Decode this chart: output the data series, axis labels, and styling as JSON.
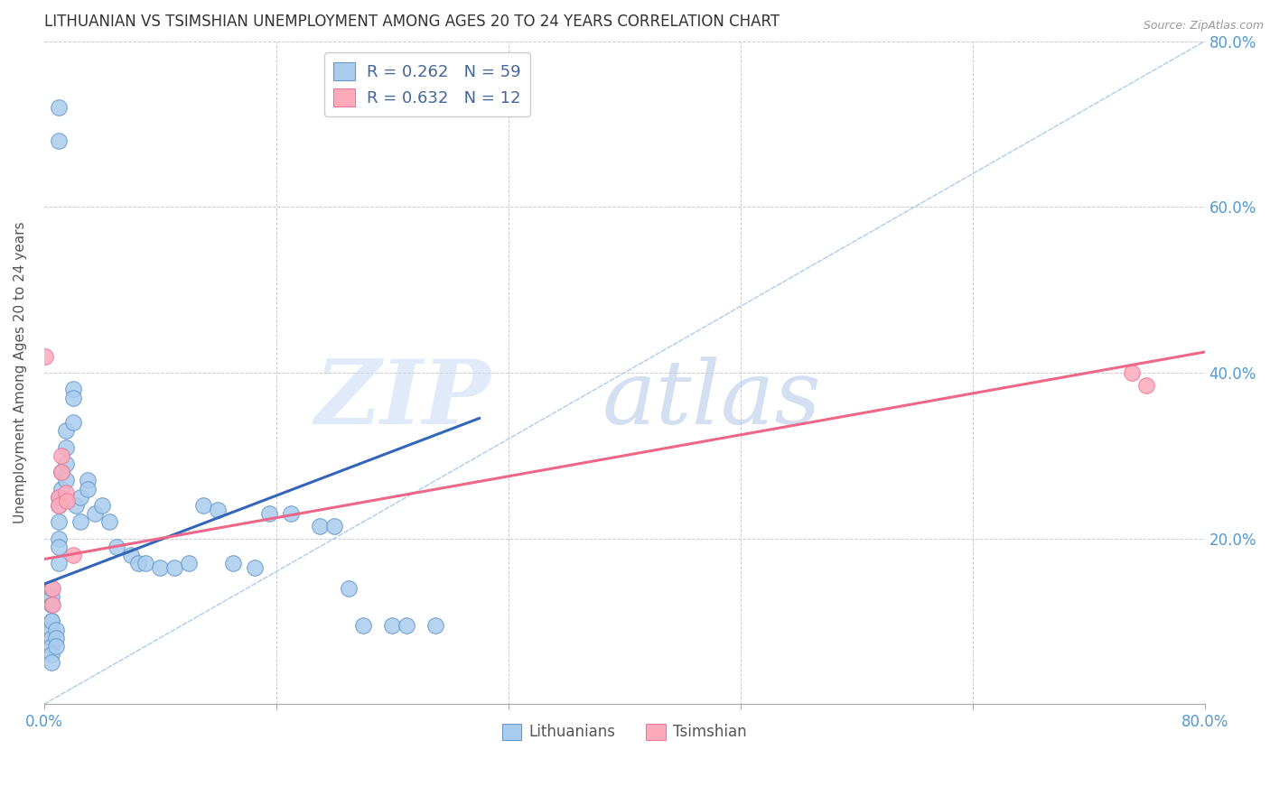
{
  "title": "LITHUANIAN VS TSIMSHIAN UNEMPLOYMENT AMONG AGES 20 TO 24 YEARS CORRELATION CHART",
  "source": "Source: ZipAtlas.com",
  "ylabel": "Unemployment Among Ages 20 to 24 years",
  "xlim": [
    0.0,
    0.8
  ],
  "ylim": [
    0.0,
    0.8
  ],
  "right_yticks": [
    0.2,
    0.4,
    0.6,
    0.8
  ],
  "right_yticklabels": [
    "20.0%",
    "40.0%",
    "60.0%",
    "80.0%"
  ],
  "legend_line1": "R = 0.262   N = 59",
  "legend_line2": "R = 0.632   N = 12",
  "blue_fill": "#aaccee",
  "blue_edge": "#6699cc",
  "blue_line": "#3366bb",
  "pink_fill": "#ffaabb",
  "pink_edge": "#ee7799",
  "pink_line": "#ee6688",
  "axis_label_color": "#5599cc",
  "legend_r_color": "#446699",
  "legend_n_color": "#44aacc",
  "grid_color": "#cccccc",
  "diag_color": "#aaccee",
  "title_fontsize": 12,
  "label_fontsize": 11,
  "tick_fontsize": 12,
  "legend_fontsize": 13,
  "lith_x": [
    0.01,
    0.01,
    0.005,
    0.005,
    0.005,
    0.005,
    0.005,
    0.005,
    0.005,
    0.005,
    0.005,
    0.005,
    0.005,
    0.008,
    0.008,
    0.008,
    0.01,
    0.01,
    0.01,
    0.01,
    0.01,
    0.01,
    0.012,
    0.012,
    0.015,
    0.015,
    0.015,
    0.015,
    0.02,
    0.02,
    0.02,
    0.022,
    0.025,
    0.025,
    0.03,
    0.03,
    0.035,
    0.04,
    0.045,
    0.05,
    0.06,
    0.065,
    0.07,
    0.08,
    0.09,
    0.1,
    0.11,
    0.12,
    0.13,
    0.145,
    0.155,
    0.17,
    0.19,
    0.2,
    0.21,
    0.22,
    0.24,
    0.25,
    0.27
  ],
  "lith_y": [
    0.72,
    0.68,
    0.12,
    0.1,
    0.09,
    0.08,
    0.07,
    0.06,
    0.05,
    0.13,
    0.12,
    0.1,
    0.14,
    0.09,
    0.08,
    0.07,
    0.25,
    0.24,
    0.22,
    0.2,
    0.19,
    0.17,
    0.28,
    0.26,
    0.33,
    0.31,
    0.29,
    0.27,
    0.38,
    0.34,
    0.37,
    0.24,
    0.25,
    0.22,
    0.27,
    0.26,
    0.23,
    0.24,
    0.22,
    0.19,
    0.18,
    0.17,
    0.17,
    0.165,
    0.165,
    0.17,
    0.24,
    0.235,
    0.17,
    0.165,
    0.23,
    0.23,
    0.215,
    0.215,
    0.14,
    0.095,
    0.095,
    0.095,
    0.095
  ],
  "tsim_x": [
    0.001,
    0.006,
    0.006,
    0.01,
    0.01,
    0.012,
    0.012,
    0.015,
    0.016,
    0.02,
    0.75,
    0.76
  ],
  "tsim_y": [
    0.42,
    0.14,
    0.12,
    0.25,
    0.24,
    0.3,
    0.28,
    0.255,
    0.245,
    0.18,
    0.4,
    0.385
  ],
  "blue_trend_x": [
    0.0,
    0.3
  ],
  "blue_trend_y": [
    0.145,
    0.345
  ],
  "pink_trend_x": [
    0.0,
    0.8
  ],
  "pink_trend_y": [
    0.175,
    0.425
  ]
}
